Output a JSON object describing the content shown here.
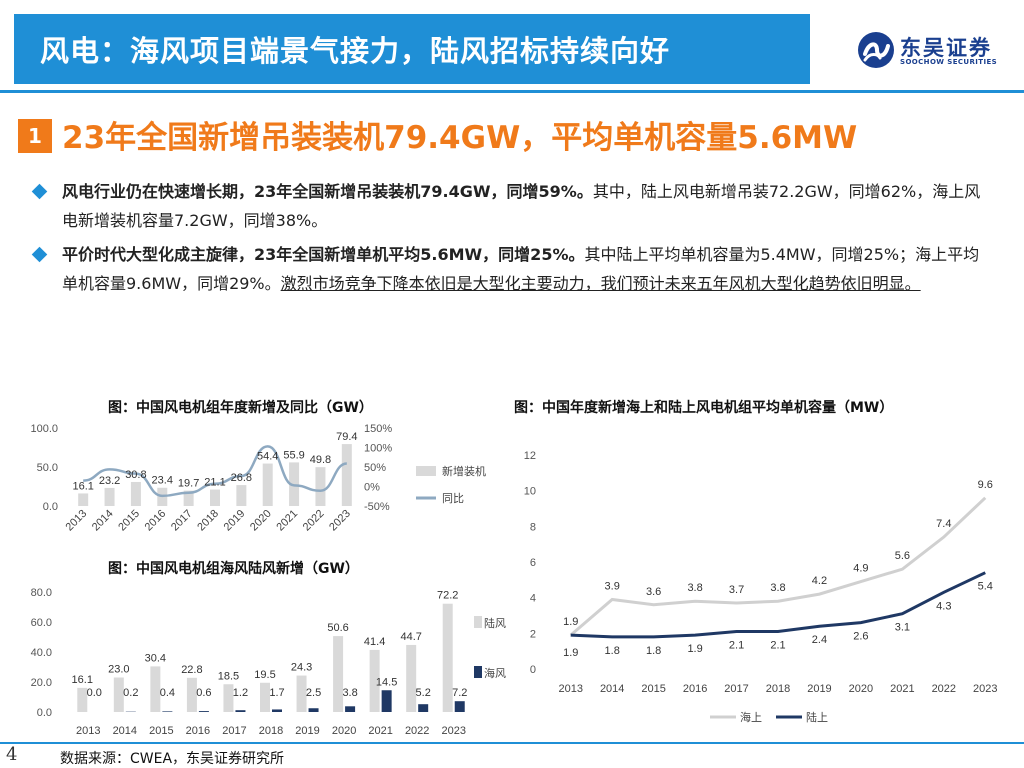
{
  "header": {
    "title": "风电：海风项目端景气接力，陆风招标持续向好",
    "logo_cn": "东吴证券",
    "logo_en": "SOOCHOW SECURITIES"
  },
  "section": {
    "number": "1",
    "title": "23年全国新增吊装装机79.4GW，平均单机容量5.6MW"
  },
  "bullets": [
    {
      "bold": "风电行业仍在快速增长期，23年全国新增吊装装机79.4GW，同增59%。",
      "normal": "其中，陆上风电新增吊装72.2GW，同增62%，海上风电新增装机容量7.2GW，同增38%。",
      "underline": ""
    },
    {
      "bold": "平价时代大型化成主旋律，23年全国新增单机平均5.6MW，同增25%。",
      "normal": "其中陆上平均单机容量为5.4MW，同增25%；海上平均单机容量9.6MW，同增29%。",
      "underline": "激烈市场竞争下降本依旧是大型化主要动力，我们预计未来五年风机大型化趋势依旧明显。"
    }
  ],
  "captions": {
    "chart1": "图：中国风电机组年度新增及同比（GW）",
    "chart2": "图：中国风电机组海风陆风新增（GW）",
    "chart3": "图：中国年度新增海上和陆上风电机组平均单机容量（MW）"
  },
  "source": "数据来源：CWEA，东吴证券研究所",
  "page_number": "4",
  "colors": {
    "accent": "#1f8fd6",
    "orange": "#f07a1a",
    "bar_gray": "#d9d9d9",
    "yoy_line": "#8ea9c1",
    "navy": "#1f3864",
    "light_gray": "#d0d0d0"
  },
  "chart_data": [
    {
      "id": "annual",
      "type": "bar",
      "title": "图：中国风电机组年度新增及同比（GW）",
      "categories": [
        "2013",
        "2014",
        "2015",
        "2016",
        "2017",
        "2018",
        "2019",
        "2020",
        "2021",
        "2022",
        "2023"
      ],
      "series": [
        {
          "name": "新增装机",
          "type": "bar",
          "axis": "left",
          "values": [
            16.1,
            23.2,
            30.8,
            23.4,
            19.7,
            21.1,
            26.8,
            54.4,
            55.9,
            49.8,
            79.4
          ],
          "labels": [
            "16.1",
            "23.2",
            "30.8",
            "23.4",
            "19.7",
            "21.1",
            "26.8",
            "54.4",
            "55.9",
            "49.8",
            "79.4"
          ]
        },
        {
          "name": "同比",
          "type": "line",
          "axis": "right",
          "values": [
            0.15,
            0.44,
            0.33,
            -0.24,
            -0.16,
            0.07,
            0.27,
            1.03,
            0.03,
            -0.11,
            0.59
          ]
        }
      ],
      "y_left": {
        "min": 0,
        "max": 100,
        "ticks": [
          "0.0",
          "50.0",
          "100.0"
        ],
        "tick_values": [
          0,
          50,
          100
        ]
      },
      "y_right": {
        "min": -0.5,
        "max": 1.5,
        "ticks": [
          "-50%",
          "0%",
          "50%",
          "100%",
          "150%"
        ],
        "tick_values": [
          -0.5,
          0,
          0.5,
          1.0,
          1.5
        ]
      },
      "legend": [
        "新增装机",
        "同比"
      ],
      "legend_position": "right"
    },
    {
      "id": "onoff",
      "type": "bar",
      "title": "图：中国风电机组海风陆风新增（GW）",
      "categories": [
        "2013",
        "2014",
        "2015",
        "2016",
        "2017",
        "2018",
        "2019",
        "2020",
        "2021",
        "2022",
        "2023"
      ],
      "series": [
        {
          "name": "陆风",
          "values": [
            16.1,
            23.0,
            30.4,
            22.8,
            18.5,
            19.5,
            24.3,
            50.6,
            41.4,
            44.7,
            72.2
          ],
          "labels": [
            "16.1",
            "23.0",
            "30.4",
            "22.8",
            "18.5",
            "19.5",
            "24.3",
            "50.6",
            "41.4",
            "44.7",
            "72.2"
          ]
        },
        {
          "name": "海风",
          "values": [
            0.0,
            0.2,
            0.4,
            0.6,
            1.2,
            1.7,
            2.5,
            3.8,
            14.5,
            5.2,
            7.2
          ],
          "labels": [
            "0.0",
            "0.2",
            "0.4",
            "0.6",
            "1.2",
            "1.7",
            "2.5",
            "3.8",
            "14.5",
            "5.2",
            "7.2"
          ]
        }
      ],
      "y": {
        "min": 0,
        "max": 80,
        "ticks": [
          "0.0",
          "20.0",
          "40.0",
          "60.0",
          "80.0"
        ],
        "tick_values": [
          0,
          20,
          40,
          60,
          80
        ]
      },
      "legend": [
        "陆风",
        "海风"
      ],
      "legend_position": "right"
    },
    {
      "id": "capacity",
      "type": "line",
      "title": "图：中国年度新增海上和陆上风电机组平均单机容量（MW）",
      "x": [
        "2013",
        "2014",
        "2015",
        "2016",
        "2017",
        "2018",
        "2019",
        "2020",
        "2021",
        "2022",
        "2023"
      ],
      "series": [
        {
          "name": "海上",
          "values": [
            1.9,
            3.9,
            3.6,
            3.8,
            3.7,
            3.8,
            4.2,
            4.9,
            5.6,
            7.4,
            9.6
          ],
          "labels": [
            "1.9",
            "3.9",
            "3.6",
            "3.8",
            "3.7",
            "3.8",
            "4.2",
            "4.9",
            "5.6",
            "7.4",
            "9.6"
          ]
        },
        {
          "name": "陆上",
          "values": [
            1.9,
            1.8,
            1.8,
            1.9,
            2.1,
            2.1,
            2.4,
            2.6,
            3.1,
            4.3,
            5.4
          ],
          "labels": [
            "1.9",
            "1.8",
            "1.8",
            "1.9",
            "2.1",
            "2.1",
            "2.4",
            "2.6",
            "3.1",
            "4.3",
            "5.4"
          ]
        }
      ],
      "y": {
        "min": 0,
        "max": 12,
        "ticks": [
          "0",
          "2",
          "4",
          "6",
          "8",
          "10",
          "12"
        ],
        "tick_values": [
          0,
          2,
          4,
          6,
          8,
          10,
          12
        ]
      },
      "legend": [
        "海上",
        "陆上"
      ],
      "legend_position": "bottom"
    }
  ]
}
